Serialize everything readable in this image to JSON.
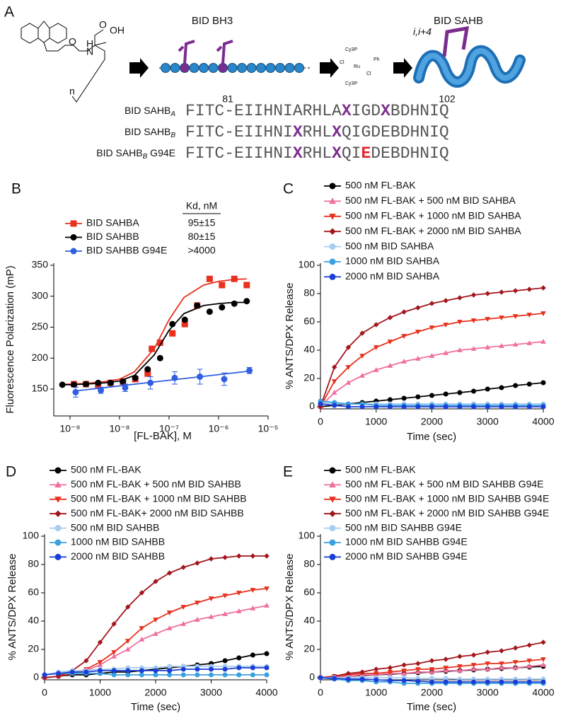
{
  "panel_a": {
    "panel": "A",
    "titles": [
      "BID BH3",
      "BID SAHB"
    ],
    "helix_label": "i,i+4",
    "chem_labels": [
      "O",
      "N",
      "H",
      "O",
      "OH",
      "n"
    ],
    "catalyst_labels": [
      "Cy3P",
      "Cl",
      "Ru",
      "Ph",
      "Cl",
      "Cy3P"
    ],
    "residue_numbers": [
      "81",
      "102"
    ],
    "sequences": [
      {
        "label": {
          "text": "BID SAHB",
          "sub": "A",
          "suffix": ""
        },
        "parts": [
          {
            "text": "FITC-EIIHNIARHLA"
          },
          {
            "text": "X",
            "color": "#7b2d8e"
          },
          {
            "text": "IGD"
          },
          {
            "text": "X",
            "color": "#7b2d8e"
          },
          {
            "text": "BDHNIQ"
          }
        ]
      },
      {
        "label": {
          "text": "BID SAHB",
          "sub": "B",
          "suffix": ""
        },
        "parts": [
          {
            "text": "FITC-EIIHNI"
          },
          {
            "text": "X",
            "color": "#7b2d8e"
          },
          {
            "text": "RHL"
          },
          {
            "text": "X",
            "color": "#7b2d8e"
          },
          {
            "text": "QIGDEBDHNIQ"
          }
        ]
      },
      {
        "label": {
          "text": "BID SAHB",
          "sub": "B",
          "suffix": " G94E"
        },
        "parts": [
          {
            "text": "FITC-EIIHNI"
          },
          {
            "text": "X",
            "color": "#7b2d8e"
          },
          {
            "text": "RHL"
          },
          {
            "text": "X",
            "color": "#7b2d8e"
          },
          {
            "text": "QI"
          },
          {
            "text": "E",
            "color": "#e5262b"
          },
          {
            "text": "DEBDHNIQ"
          }
        ]
      }
    ]
  },
  "chart_data": [
    {
      "type": "scatter",
      "panel": "B",
      "xlabel": "[FL-BAK], M",
      "ylabel": "Fluorescence Polarization (mP)",
      "log_x": true,
      "xlim": [
        4.7e-10,
        1e-05
      ],
      "ylim": [
        110,
        350
      ],
      "xticks": [
        {
          "value": 1e-09,
          "label": "10⁻⁹"
        },
        {
          "value": 1e-08,
          "label": "10⁻⁸"
        },
        {
          "value": 1e-07,
          "label": "10⁻⁷"
        },
        {
          "value": 1e-06,
          "label": "10⁻⁶"
        },
        {
          "value": 1e-05,
          "label": "10⁻⁵"
        }
      ],
      "yticks": [
        150,
        200,
        250,
        300,
        350
      ],
      "kd_header": "Kd, nM",
      "series": [
        {
          "name": "BID SAHBA",
          "color": "#e8311e",
          "marker": "square",
          "kd": "95±15",
          "x": [
            1.2e-09,
            2.1e-09,
            3.7e-09,
            6.6e-09,
            1.17e-08,
            2.08e-08,
            3.7e-08,
            4.5e-08,
            6.6e-08,
            1.17e-07,
            2.08e-07,
            3.7e-07,
            6.6e-07,
            1.17e-06,
            2.08e-06,
            3.7e-06
          ],
          "values": [
            158,
            158,
            157,
            160,
            162,
            166,
            175,
            215,
            225,
            240,
            255,
            285,
            328,
            318,
            328,
            318
          ],
          "fit_x": [
            7e-10,
            1e-09,
            2e-09,
            5e-09,
            1e-08,
            2e-08,
            5e-08,
            1e-07,
            2e-07,
            5e-07,
            1e-06,
            2e-06,
            3.7e-06
          ],
          "fit": [
            158,
            158,
            159,
            162,
            166,
            178,
            215,
            262,
            298,
            318,
            324,
            327,
            328
          ]
        },
        {
          "name": "BID SAHBB",
          "color": "#000000",
          "marker": "circle",
          "kd": "80±15",
          "x": [
            7e-10,
            1.2e-09,
            2.1e-09,
            3.7e-09,
            6.6e-09,
            1.17e-08,
            2.08e-08,
            3.7e-08,
            6.6e-08,
            1.17e-07,
            2.08e-07,
            3.7e-07,
            6.6e-07,
            1.17e-06,
            2.08e-06,
            3.7e-06
          ],
          "values": [
            157,
            157,
            158,
            160,
            160,
            162,
            168,
            182,
            200,
            255,
            262,
            285,
            275,
            282,
            288,
            292
          ],
          "fit_x": [
            7e-10,
            1e-09,
            2e-09,
            5e-09,
            1e-08,
            2e-08,
            5e-08,
            1e-07,
            2e-07,
            5e-07,
            1e-06,
            2e-06,
            3.7e-06
          ],
          "fit": [
            157,
            157,
            158,
            160,
            163,
            172,
            205,
            245,
            272,
            285,
            288,
            290,
            290
          ]
        },
        {
          "name": "BID SAHBB G94E",
          "color": "#2f5fe0",
          "marker": "circle",
          "kd": ">4000",
          "x": [
            1.3e-09,
            4.2e-09,
            1.3e-08,
            4.2e-08,
            1.3e-07,
            4.2e-07,
            1.3e-06,
            4.2e-06
          ],
          "values": [
            145,
            148,
            152,
            160,
            168,
            170,
            166,
            180
          ],
          "errors": [
            8,
            5,
            6,
            10,
            10,
            12,
            10,
            5
          ],
          "fit_x": [
            1.3e-09,
            4.2e-06
          ],
          "fit": [
            147,
            179
          ]
        }
      ]
    },
    {
      "type": "line",
      "panel": "C",
      "xlabel": "Time (sec)",
      "ylabel": "% ANTS/DPX Release",
      "x": [
        0,
        250,
        500,
        750,
        1000,
        1250,
        1500,
        1750,
        2000,
        2250,
        2500,
        2750,
        3000,
        3250,
        3500,
        3750,
        4000
      ],
      "xlim": [
        0,
        4000
      ],
      "ylim": [
        0,
        100
      ],
      "xticks": [
        0,
        1000,
        2000,
        3000,
        4000
      ],
      "yticks": [
        0,
        20,
        40,
        60,
        80,
        100
      ],
      "series": [
        {
          "name": "500 nM FL-BAK",
          "color": "#000000",
          "marker": "circle",
          "values": [
            0,
            1,
            2,
            3,
            4,
            5,
            6,
            7,
            8,
            9,
            10,
            11,
            12.5,
            13.5,
            15,
            16,
            17
          ]
        },
        {
          "name": "500 nM FL-BAK + 500 nM BID SAHBA",
          "color": "#f06fa0",
          "marker": "triangle",
          "values": [
            0,
            10,
            17,
            22,
            26,
            29,
            32,
            34,
            36,
            38,
            40,
            41,
            42,
            43,
            44,
            45,
            46
          ]
        },
        {
          "name": "500 nM FL-BAK + 1000 nM BID SAHBA",
          "color": "#e8311e",
          "marker": "triangle-down",
          "values": [
            0,
            18,
            28,
            36,
            42,
            46,
            50,
            53,
            56,
            58,
            60,
            61,
            62,
            63,
            64,
            65,
            66
          ]
        },
        {
          "name": "500 nM FL-BAK + 2000 nM BID SAHBA",
          "color": "#a3161c",
          "marker": "diamond",
          "values": [
            0,
            28,
            42,
            52,
            58,
            63,
            67,
            70,
            73,
            75,
            77,
            79,
            80,
            81,
            82,
            83,
            84
          ]
        },
        {
          "name": "500 nM BID SAHBA",
          "color": "#a8cdf0",
          "marker": "circle",
          "values": [
            3,
            2,
            2,
            2,
            2,
            2,
            2,
            2,
            2,
            2,
            2,
            2,
            2,
            2,
            2,
            2,
            2
          ]
        },
        {
          "name": "1000 nM BID SAHBA",
          "color": "#3aa0e0",
          "marker": "circle",
          "values": [
            4,
            3,
            2,
            2,
            1,
            1,
            1,
            1,
            1,
            1,
            1,
            1,
            1,
            1,
            1,
            1,
            1
          ]
        },
        {
          "name": "2000 nM BID SAHBA",
          "color": "#1a3fd6",
          "marker": "circle",
          "values": [
            2,
            1,
            0,
            0,
            0,
            0,
            0,
            0,
            0,
            0,
            0,
            0,
            0,
            0,
            0,
            0,
            0
          ]
        }
      ]
    },
    {
      "type": "line",
      "panel": "D",
      "xlabel": "Time (sec)",
      "ylabel": "% ANTS/DPX Release",
      "x": [
        0,
        250,
        500,
        750,
        1000,
        1250,
        1500,
        1750,
        2000,
        2250,
        2500,
        2750,
        3000,
        3250,
        3500,
        3750,
        4000
      ],
      "xlim": [
        0,
        4000
      ],
      "ylim": [
        0,
        100
      ],
      "xticks": [
        0,
        1000,
        2000,
        3000,
        4000
      ],
      "yticks": [
        0,
        20,
        40,
        60,
        80,
        100
      ],
      "series": [
        {
          "name": "500 nM FL-BAK",
          "color": "#000000",
          "marker": "circle",
          "values": [
            0,
            1,
            2,
            2,
            3,
            4,
            4,
            5,
            6,
            7,
            8,
            9,
            10,
            12,
            14,
            16,
            17
          ]
        },
        {
          "name": "500 nM FL-BAK + 500 nM BID SAHBB",
          "color": "#f06fa0",
          "marker": "triangle",
          "values": [
            0,
            1,
            3,
            5,
            9,
            15,
            20,
            27,
            31,
            35,
            38,
            41,
            43,
            45,
            47,
            49,
            51
          ]
        },
        {
          "name": "500 nM FL-BAK + 1000 nM BID SAHBB",
          "color": "#e8311e",
          "marker": "triangle-down",
          "values": [
            0,
            1,
            3,
            6,
            11,
            18,
            26,
            35,
            41,
            46,
            50,
            53,
            56,
            58,
            60,
            62,
            63
          ]
        },
        {
          "name": "500 nM FL-BAK+ 2000 nM BID SAHBB",
          "color": "#a3161c",
          "marker": "diamond",
          "values": [
            0,
            1,
            5,
            12,
            25,
            38,
            50,
            60,
            68,
            74,
            78,
            81,
            84,
            85,
            86,
            86,
            86
          ]
        },
        {
          "name": "500 nM BID SAHBB",
          "color": "#a8cdf0",
          "marker": "circle",
          "values": [
            2,
            4,
            5,
            5,
            6,
            6,
            7,
            7,
            7,
            8,
            8,
            8,
            8,
            8,
            8,
            8,
            8
          ]
        },
        {
          "name": "1000 nM BID SAHBB",
          "color": "#3aa0e0",
          "marker": "circle",
          "values": [
            2,
            3,
            3,
            3,
            3,
            2,
            2,
            2,
            2,
            2,
            2,
            2,
            2,
            2,
            2,
            2,
            2
          ]
        },
        {
          "name": "2000 nM BID SAHBB",
          "color": "#1a3fd6",
          "marker": "circle",
          "values": [
            2,
            3,
            4,
            4,
            5,
            5,
            5,
            5,
            5,
            5,
            6,
            6,
            6,
            6,
            7,
            7,
            7
          ]
        }
      ]
    },
    {
      "type": "line",
      "panel": "E",
      "xlabel": "Time (sec)",
      "ylabel": "% ANTS/DPX Release",
      "x": [
        0,
        250,
        500,
        750,
        1000,
        1250,
        1500,
        1750,
        2000,
        2250,
        2500,
        2750,
        3000,
        3250,
        3500,
        3750,
        4000
      ],
      "xlim": [
        0,
        4000
      ],
      "ylim": [
        0,
        100
      ],
      "xticks": [
        0,
        1000,
        2000,
        3000,
        4000
      ],
      "yticks": [
        0,
        20,
        40,
        60,
        80,
        100
      ],
      "series": [
        {
          "name": "500 nM FL-BAK",
          "color": "#000000",
          "marker": "circle",
          "values": [
            0,
            0.5,
            1,
            1.5,
            2,
            2.5,
            3,
            3.5,
            4,
            4.5,
            5,
            5.5,
            6,
            6.5,
            7,
            7.5,
            8
          ]
        },
        {
          "name": "500 nM FL-BAK + 500 nM BID SAHBB G94E",
          "color": "#f06fa0",
          "marker": "triangle",
          "values": [
            0,
            0.5,
            1,
            2,
            2,
            3,
            3,
            4,
            4,
            5,
            5,
            6,
            6,
            7,
            7,
            8,
            9
          ]
        },
        {
          "name": "500 nM FL-BAK + 1000 nM BID SAHBB G94E",
          "color": "#e8311e",
          "marker": "triangle-down",
          "values": [
            0,
            1,
            2,
            3,
            3,
            4,
            5,
            6,
            6,
            7,
            8,
            9,
            10,
            10,
            11,
            12,
            13
          ]
        },
        {
          "name": "500 nM FL-BAK + 2000 nM BID SAHBB G94E",
          "color": "#a3161c",
          "marker": "diamond",
          "values": [
            0,
            1,
            3,
            4,
            6,
            7,
            9,
            10,
            12,
            13,
            15,
            16,
            18,
            19,
            21,
            23,
            25
          ]
        },
        {
          "name": "500 nM BID SAHBB G94E",
          "color": "#a8cdf0",
          "marker": "circle",
          "values": [
            0,
            0,
            0,
            0,
            0,
            0,
            0,
            -0.5,
            -0.5,
            -0.5,
            -1,
            -1,
            -1,
            -1,
            -1,
            -1,
            -1
          ]
        },
        {
          "name": "1000 nM BID SAHBB G94E",
          "color": "#3aa0e0",
          "marker": "circle",
          "values": [
            0,
            -1,
            -2,
            -2,
            -3,
            -3,
            -4,
            -4,
            -4,
            -4,
            -4,
            -4,
            -4,
            -4,
            -4,
            -4,
            -4
          ]
        },
        {
          "name": "2000 nM BID SAHBB G94E",
          "color": "#1a3fd6",
          "marker": "circle",
          "values": [
            0,
            -0.5,
            -1,
            -1,
            -1.5,
            -2,
            -2,
            -2.5,
            -3,
            -3,
            -3,
            -3,
            -3,
            -3,
            -3,
            -3,
            -3
          ]
        }
      ]
    }
  ]
}
